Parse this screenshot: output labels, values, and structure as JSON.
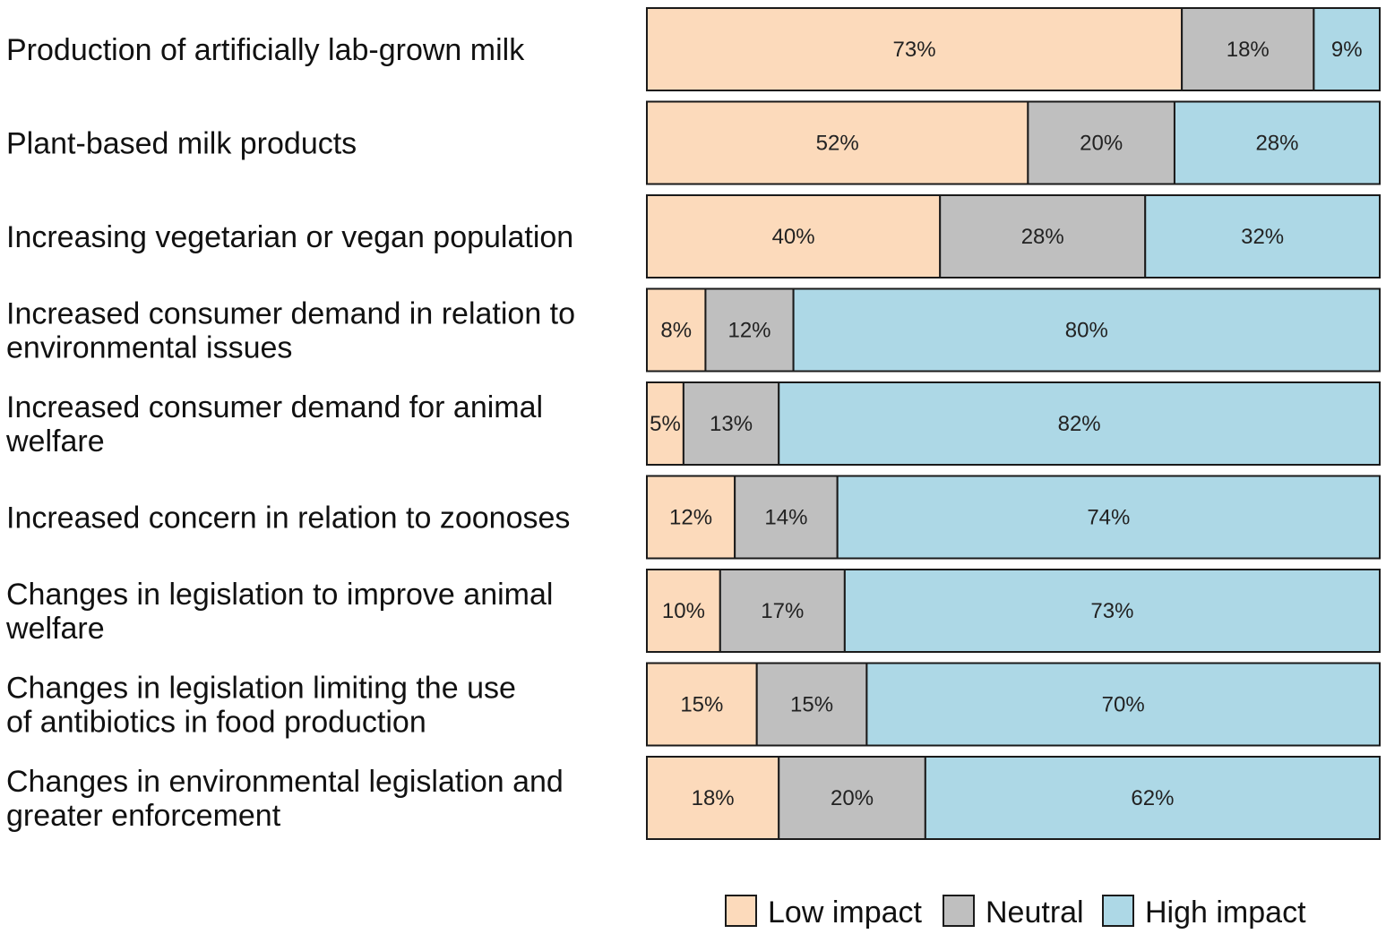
{
  "chart_data": {
    "type": "bar",
    "orientation": "horizontal",
    "stacked": true,
    "value_format": "percent",
    "categories": [
      [
        "Production of artificially lab-grown milk"
      ],
      [
        "Plant-based milk products"
      ],
      [
        "Increasing vegetarian or vegan population"
      ],
      [
        "Increased consumer demand in relation to",
        "environmental issues"
      ],
      [
        "Increased consumer demand for animal",
        "welfare"
      ],
      [
        "Increased concern in relation to zoonoses"
      ],
      [
        "Changes in legislation to improve animal",
        "welfare"
      ],
      [
        "Changes in legislation limiting the use",
        "of antibiotics in food production"
      ],
      [
        "Changes in environmental legislation and",
        "greater enforcement"
      ]
    ],
    "series": [
      {
        "name": "Low impact",
        "color": "#fcdabb",
        "values": [
          73,
          52,
          40,
          8,
          5,
          12,
          10,
          15,
          18
        ],
        "labels": [
          "73%",
          "52%",
          "40%",
          "8%",
          "5%",
          "12%",
          "10%",
          "15%",
          "18%"
        ]
      },
      {
        "name": "Neutral",
        "color": "#bfbfbf",
        "values": [
          18,
          20,
          28,
          12,
          13,
          14,
          17,
          15,
          20
        ],
        "labels": [
          "18%",
          "20%",
          "28%",
          "12%",
          "13%",
          "14%",
          "17%",
          "15%",
          "20%"
        ]
      },
      {
        "name": "High impact",
        "color": "#add8e6",
        "values": [
          9,
          28,
          32,
          80,
          82,
          74,
          73,
          70,
          62
        ],
        "labels": [
          "9%",
          "28%",
          "32%",
          "80%",
          "82%",
          "74%",
          "73%",
          "70%",
          "62%"
        ]
      }
    ],
    "xlim": [
      0,
      100
    ],
    "grid": false,
    "legend_position": "bottom-right",
    "title": "",
    "xlabel": "",
    "ylabel": ""
  }
}
